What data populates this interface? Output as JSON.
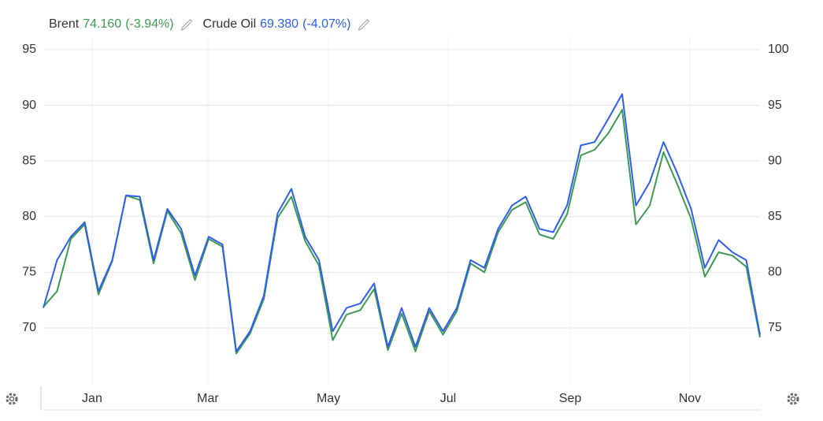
{
  "chart_data": {
    "type": "line",
    "xticks": [
      {
        "value": 3.54,
        "label": "Jan"
      },
      {
        "value": 11.94,
        "label": "Mar"
      },
      {
        "value": 20.69,
        "label": "May"
      },
      {
        "value": 29.37,
        "label": "Jul"
      },
      {
        "value": 38.23,
        "label": "Sep"
      },
      {
        "value": 46.91,
        "label": "Nov"
      }
    ],
    "xlim": [
      0,
      52
    ],
    "ylim": [
      64.76,
      96.27
    ],
    "yticks": [
      70,
      75,
      80,
      85,
      90,
      95
    ],
    "y2lim": [
      69.76,
      101.27
    ],
    "y2ticks": [
      75,
      80,
      85,
      90,
      95,
      100
    ],
    "grid": true,
    "series": [
      {
        "name": "Brent",
        "legend_value": "74.160",
        "legend_change": "(-3.94%)",
        "color": "#3d9a52",
        "axis": "y2",
        "values": [
          76.9,
          78.3,
          83.0,
          84.3,
          78.0,
          81.0,
          86.9,
          86.5,
          80.8,
          85.5,
          83.5,
          79.3,
          83.0,
          82.3,
          72.7,
          74.5,
          77.6,
          84.9,
          86.8,
          82.8,
          80.6,
          73.9,
          76.2,
          76.6,
          78.5,
          73.0,
          76.3,
          72.9,
          76.5,
          74.4,
          76.5,
          80.8,
          80.0,
          83.6,
          85.6,
          86.3,
          83.4,
          83.0,
          85.2,
          90.5,
          91.0,
          92.5,
          94.6,
          84.3,
          86.0,
          90.8,
          87.9,
          84.8,
          79.6,
          81.8,
          81.5,
          80.5,
          74.16
        ]
      },
      {
        "name": "Crude Oil",
        "legend_value": "69.380",
        "legend_change": "(-4.07%)",
        "color": "#2f5ef0",
        "values": [
          71.8,
          76.1,
          78.2,
          79.5,
          73.3,
          76.1,
          81.9,
          81.8,
          76.1,
          80.7,
          78.9,
          74.7,
          78.2,
          77.5,
          67.9,
          69.7,
          72.9,
          80.3,
          82.5,
          78.2,
          76.1,
          69.7,
          71.8,
          72.2,
          74.0,
          68.3,
          71.8,
          68.3,
          71.8,
          69.7,
          71.8,
          76.1,
          75.4,
          78.9,
          81.0,
          81.8,
          78.9,
          78.6,
          81.0,
          86.4,
          86.7,
          88.8,
          91.0,
          81.0,
          83.1,
          86.7,
          83.9,
          80.7,
          75.4,
          77.9,
          76.8,
          76.1,
          69.38
        ]
      }
    ]
  }
}
